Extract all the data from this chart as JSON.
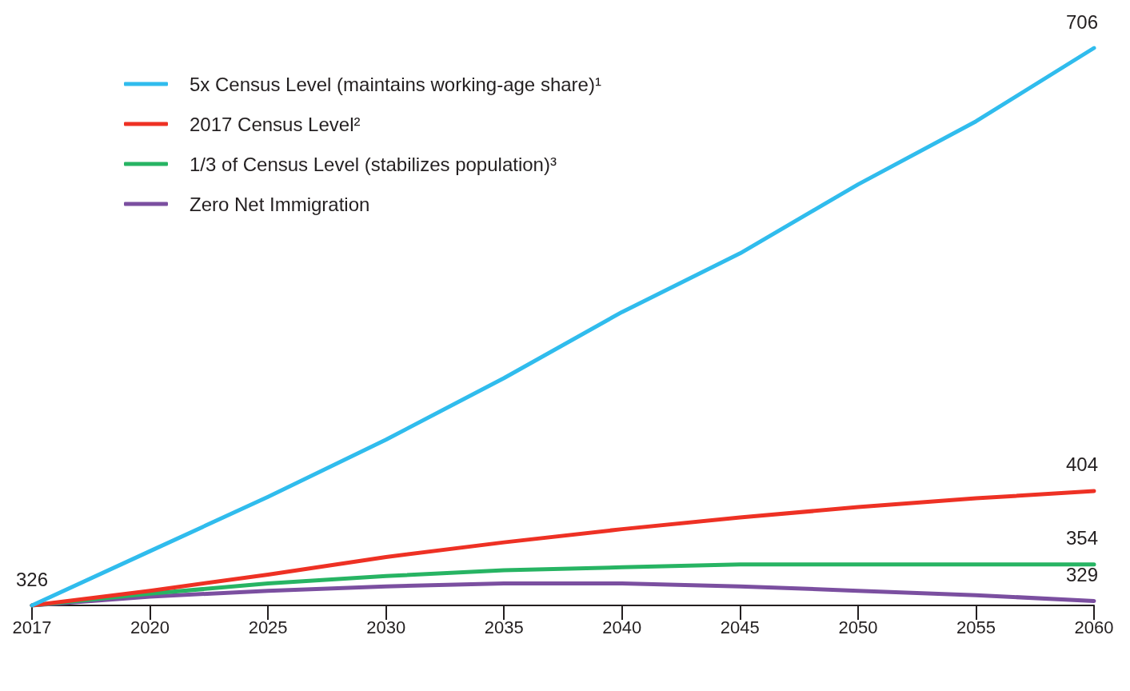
{
  "chart_data": {
    "type": "line",
    "categories": [
      "2017",
      "2020",
      "2025",
      "2030",
      "2035",
      "2040",
      "2045",
      "2050",
      "2055",
      "2060"
    ],
    "series": [
      {
        "name": "5x Census Level (maintains working-age share)¹",
        "color": "#30bced",
        "values": [
          326,
          363,
          400,
          439,
          481,
          526,
          566,
          613,
          656,
          706
        ],
        "value_labels": [
          "326",
          null,
          null,
          null,
          null,
          null,
          null,
          null,
          null,
          "706"
        ]
      },
      {
        "name": "2017 Census Level²",
        "color": "#ee3124",
        "values": [
          326,
          336,
          347,
          359,
          369,
          378,
          386,
          393,
          399,
          404
        ],
        "value_labels": [
          null,
          null,
          null,
          null,
          null,
          null,
          null,
          null,
          null,
          "404"
        ]
      },
      {
        "name": "1/3 of Census Level (stabilizes population)³",
        "color": "#27b463",
        "values": [
          326,
          334,
          341,
          346,
          350,
          352,
          354,
          354,
          354,
          354
        ],
        "value_labels": [
          null,
          null,
          null,
          null,
          null,
          null,
          null,
          null,
          null,
          "354"
        ]
      },
      {
        "name": "Zero Net Immigration",
        "color": "#7b4fa0",
        "values": [
          326,
          332,
          336,
          339,
          341,
          341,
          339,
          336,
          333,
          329
        ],
        "value_labels": [
          null,
          null,
          null,
          null,
          null,
          null,
          null,
          null,
          null,
          "329"
        ]
      }
    ],
    "legend": "top left",
    "grid": false,
    "marker": "none",
    "line_style": "solid"
  }
}
